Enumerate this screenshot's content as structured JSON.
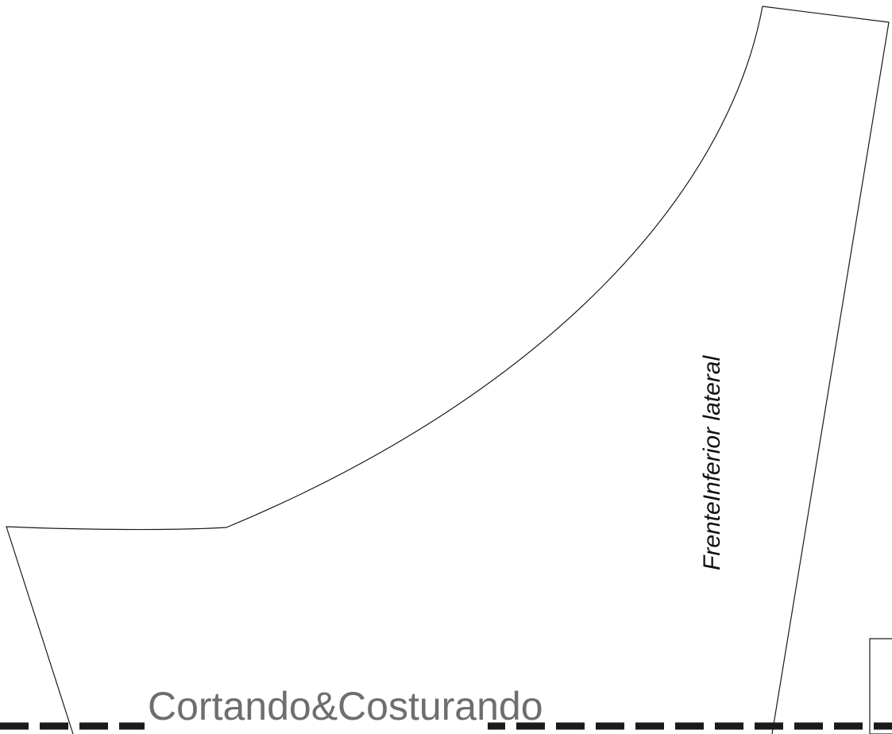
{
  "pattern": {
    "piece_label": "FrenteInferior lateral",
    "watermark": "Cortando&Costurando"
  },
  "colors": {
    "outline": "#1a1a1a",
    "watermark": "#6e6e6e",
    "background": "#ffffff"
  }
}
